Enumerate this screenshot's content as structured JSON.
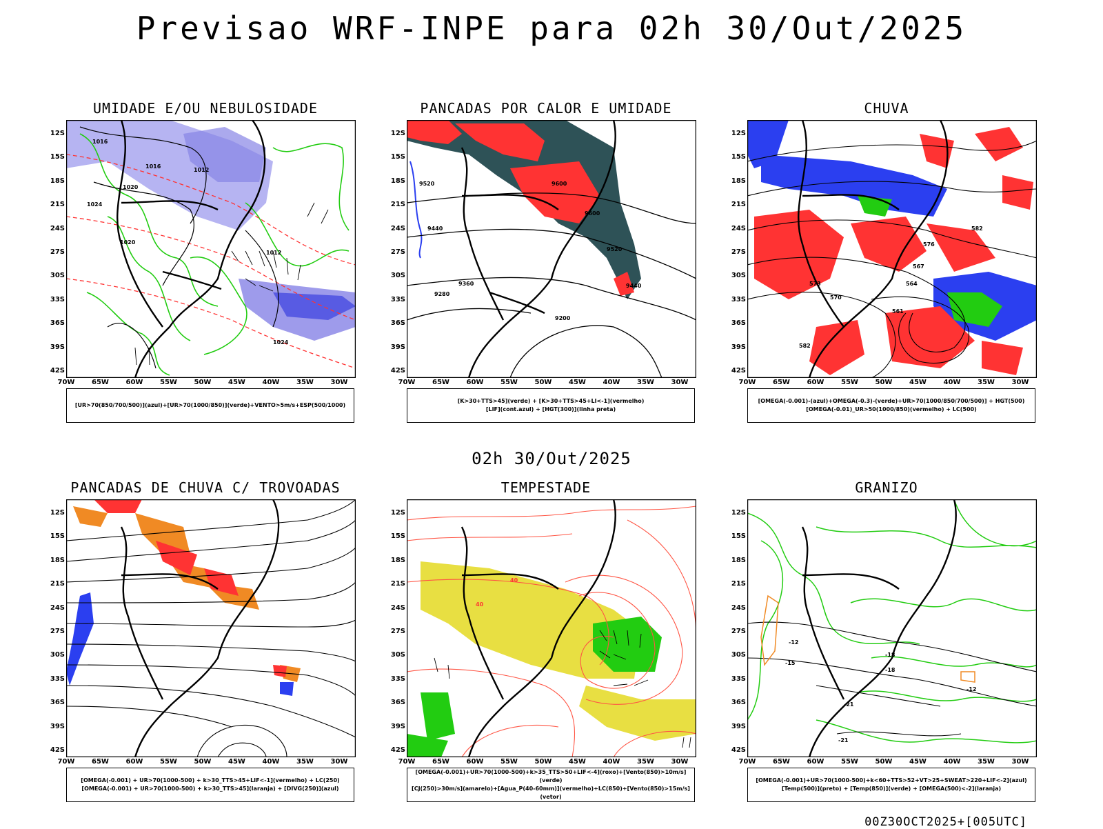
{
  "title": "Previsao WRF-INPE  para 02h 30/Out/2025",
  "mid_date": "02h 30/Out/2025",
  "footer": "00Z30OCT2025+[005UTC]",
  "axes": {
    "lat_labels": [
      "12S",
      "15S",
      "18S",
      "21S",
      "24S",
      "27S",
      "30S",
      "33S",
      "36S",
      "39S",
      "42S"
    ],
    "lon_labels": [
      "70W",
      "65W",
      "60W",
      "55W",
      "50W",
      "45W",
      "40W",
      "35W",
      "30W"
    ]
  },
  "colors": {
    "red": "#ff3333",
    "blue": "#2b3ff0",
    "green": "#22cc11",
    "lavender": "#a9a7f0",
    "dark_teal": "#2e5257",
    "orange": "#f08a24",
    "yellow": "#e6dc2e",
    "salmon": "#ff6a55"
  },
  "panels": [
    {
      "id": "umidade",
      "title": "UMIDADE E/OU NEBULOSIDADE",
      "legend": [
        "[UR>70(850/700/500)](azul)+[UR>70(1000/850)](verde)+VENTO>5m/s+ESP(500/1000)"
      ],
      "contour_labels": [
        "1012",
        "1016",
        "1020",
        "1024",
        "1016",
        "1020",
        "1012",
        "1024"
      ]
    },
    {
      "id": "pancadas-calor",
      "title": "PANCADAS POR CALOR E UMIDADE",
      "legend": [
        "[K>30+TTS>45](verde) + [K>30+TTS>45+LI<-1](vermelho)",
        "[LIF](cont.azul) + [HGT(300)](linha preta)"
      ],
      "contour_labels": [
        "9600",
        "9520",
        "9440",
        "9360",
        "9280",
        "9200",
        "9520",
        "9440",
        "9600"
      ]
    },
    {
      "id": "chuva",
      "title": "CHUVA",
      "legend": [
        "[OMEGA(-0.001)-(azul)+OMEGA(-0.3)-(verde)+UR>70(1000/850/700/500)] + HGT(500)",
        "[OMEGA(-0.01)_UR>50(1000/850)(vermelho) + LC(500)"
      ],
      "contour_labels": [
        "582",
        "576",
        "570",
        "564",
        "573",
        "567",
        "561",
        "582"
      ]
    },
    {
      "id": "pancadas-trovoadas",
      "title": "PANCADAS DE CHUVA C/ TROVOADAS",
      "legend": [
        "[OMEGA(-0.001) + UR>70(1000-500) + k>30_TTS>45+LIF<-1](vermelho) + LC(250)",
        "[OMEGA(-0.001) + UR>70(1000-500) + k>30_TTS>45](laranja) + [DIVG(250)](azul)"
      ]
    },
    {
      "id": "tempestade",
      "title": "TEMPESTADE",
      "legend": [
        "[OMEGA(-0.001)+UR>70(1000-500)+k>35_TTS>50+LIF<-4](roxo)+[Vento(850)>10m/s](verde)",
        "[CJ(250)>30m/s](amarelo)+[Agua_P(40-60mm)](vermelho)+LC(850)+[Vento(850)>15m/s](vetor)"
      ],
      "contour_labels": [
        "40",
        "40"
      ]
    },
    {
      "id": "granizo",
      "title": "GRANIZO",
      "legend": [
        "[OMEGA(-0.001)+UR>70(1000-500)+k<60+TTS>52+VT>25+SWEAT>220+LIF<-2](azul)",
        "[Temp(500)](preto) + [Temp(850)](verde) + [OMEGA(500)<-2](laranja)"
      ],
      "contour_labels": [
        "-12",
        "-15",
        "-18",
        "-21",
        "-12",
        "-21",
        "-18"
      ]
    }
  ]
}
